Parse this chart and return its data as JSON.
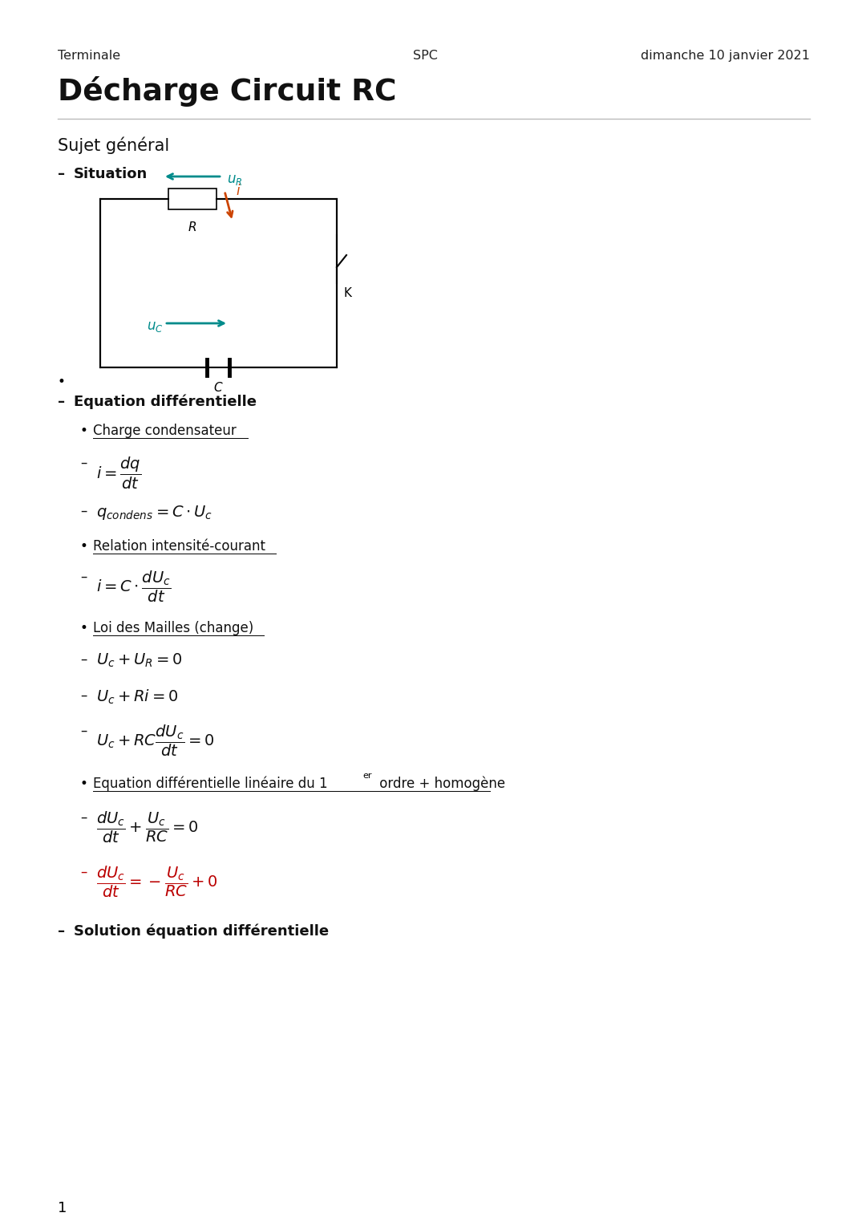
{
  "header_left": "Terminale",
  "header_center": "SPC",
  "header_right": "dimanche 10 janvier 2021",
  "title": "Décharge Circuit RC",
  "section": "Sujet général",
  "bg_color": "#ffffff",
  "text_color": "#000000",
  "red_color": "#bb0000",
  "teal_color": "#008B8B",
  "orange_color": "#cc4400",
  "gray_color": "#aaaaaa"
}
